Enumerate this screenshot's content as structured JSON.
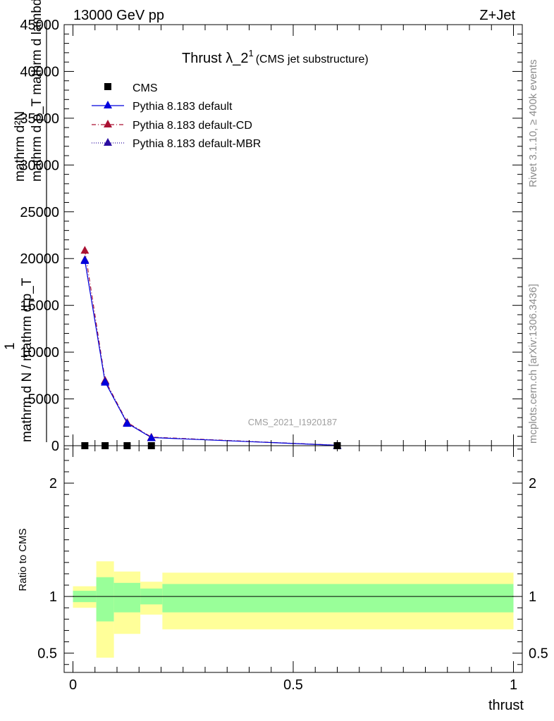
{
  "header": {
    "left": "13000 GeV pp",
    "right": "Z+Jet"
  },
  "side_labels": {
    "rivet": "Rivet 3.1.10, ≥ 400k events",
    "mcplots": "mcplots.cern.ch [arXiv:1306.3436]"
  },
  "colors": {
    "cms": "#000000",
    "default": "#0000dd",
    "default_cd": "#aa1133",
    "default_mbr": "#2a0ca0",
    "band_inner": "#99ff99",
    "band_outer": "#ffff99"
  },
  "chart_data": [
    {
      "type": "line",
      "title_main": "Thrust λ_2",
      "title_sup": "1",
      "title_sub": "(CMS jet substructure)",
      "watermark": "CMS_2021_I1920187",
      "ylabel_num": "mathrm d²N",
      "ylabel_num2": "mathrm d p_T mathrm d lambda",
      "ylabel_den_top": "1",
      "ylabel_den": "mathrm d N / mathrm d p_T",
      "xlim": [
        -0.02,
        1.02
      ],
      "ylim": [
        0,
        45000
      ],
      "y_ticks": [
        0,
        5000,
        10000,
        15000,
        20000,
        25000,
        30000,
        35000,
        40000,
        45000
      ],
      "y_tick_labels": [
        "0",
        "5000",
        "10000",
        "15000",
        "20000",
        "25000",
        "30000",
        "35000",
        "40000",
        "45000"
      ],
      "legend_position": "top-left",
      "series": [
        {
          "name": "CMS",
          "marker": "square",
          "x": [
            0.027,
            0.073,
            0.123,
            0.178,
            0.6
          ],
          "y": [
            0,
            0,
            0,
            0,
            0
          ]
        },
        {
          "name": "Pythia 8.183 default",
          "marker": "triangle",
          "line": "solid",
          "x": [
            0.027,
            0.073,
            0.123,
            0.178,
            0.6
          ],
          "y": [
            19800,
            6800,
            2400,
            870,
            40
          ]
        },
        {
          "name": "Pythia 8.183 default-CD",
          "marker": "triangle",
          "line": "dashdot",
          "x": [
            0.027,
            0.073,
            0.123,
            0.178,
            0.6
          ],
          "y": [
            20900,
            7000,
            2500,
            920,
            45
          ]
        },
        {
          "name": "Pythia 8.183 default-MBR",
          "marker": "triangle",
          "line": "dotted",
          "x": [
            0.027,
            0.073,
            0.123,
            0.178,
            0.6
          ],
          "y": [
            19900,
            6900,
            2450,
            880,
            42
          ]
        }
      ]
    },
    {
      "type": "area",
      "ylabel": "Ratio to CMS",
      "xlabel": "thrust",
      "xlim": [
        -0.02,
        1.02
      ],
      "ylim": [
        0.33,
        2.33
      ],
      "x_ticks": [
        0,
        0.5,
        1
      ],
      "x_tick_labels": [
        "0",
        "0.5",
        "1"
      ],
      "y_ticks": [
        0.5,
        1,
        2
      ],
      "y_tick_labels": [
        "0.5",
        "1",
        "2"
      ],
      "reference_line": 1,
      "bins": [
        {
          "x0": 0.0,
          "x1": 0.053,
          "inner": [
            0.95,
            1.05
          ],
          "outer": [
            0.9,
            1.09
          ]
        },
        {
          "x0": 0.053,
          "x1": 0.093,
          "inner": [
            0.78,
            1.17
          ],
          "outer": [
            0.46,
            1.31
          ]
        },
        {
          "x0": 0.093,
          "x1": 0.153,
          "inner": [
            0.86,
            1.12
          ],
          "outer": [
            0.67,
            1.22
          ]
        },
        {
          "x0": 0.153,
          "x1": 0.203,
          "inner": [
            0.93,
            1.07
          ],
          "outer": [
            0.84,
            1.13
          ]
        },
        {
          "x0": 0.203,
          "x1": 1.0,
          "inner": [
            0.86,
            1.11
          ],
          "outer": [
            0.71,
            1.21
          ]
        }
      ]
    }
  ]
}
